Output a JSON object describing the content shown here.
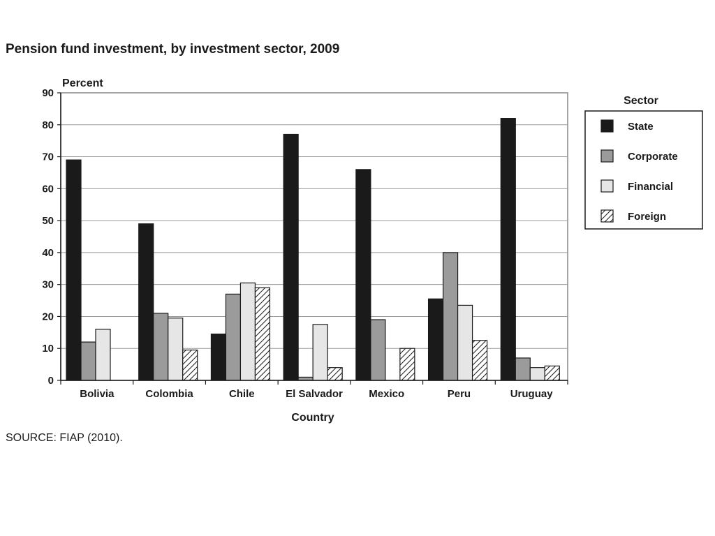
{
  "title": "Pension fund investment, by investment sector, 2009",
  "source": "SOURCE: FIAP (2010).",
  "chart_data": {
    "type": "bar",
    "title": "Pension fund investment, by investment sector, 2009",
    "ylabel": "Percent",
    "xlabel": "Country",
    "ylim": [
      0,
      90
    ],
    "yticks": [
      0,
      10,
      20,
      30,
      40,
      50,
      60,
      70,
      80,
      90
    ],
    "grid": true,
    "legend_title": "Sector",
    "legend_position": "right",
    "categories": [
      "Bolivia",
      "Colombia",
      "Chile",
      "El Salvador",
      "Mexico",
      "Peru",
      "Uruguay"
    ],
    "series": [
      {
        "name": "State",
        "fill": "#1a1a1a",
        "pattern": "solid",
        "values": [
          69,
          49,
          14.5,
          77,
          66,
          25.5,
          82
        ]
      },
      {
        "name": "Corporate",
        "fill": "#9b9b9b",
        "pattern": "solid",
        "values": [
          12,
          21,
          27,
          1,
          19,
          40,
          7
        ]
      },
      {
        "name": "Financial",
        "fill": "#e6e6e6",
        "pattern": "solid",
        "values": [
          16,
          19.5,
          30.5,
          17.5,
          0,
          23.5,
          4
        ]
      },
      {
        "name": "Foreign",
        "fill": "#ffffff",
        "pattern": "hatch",
        "values": [
          0,
          9.5,
          29,
          4,
          10,
          12.5,
          4.5
        ]
      }
    ]
  }
}
